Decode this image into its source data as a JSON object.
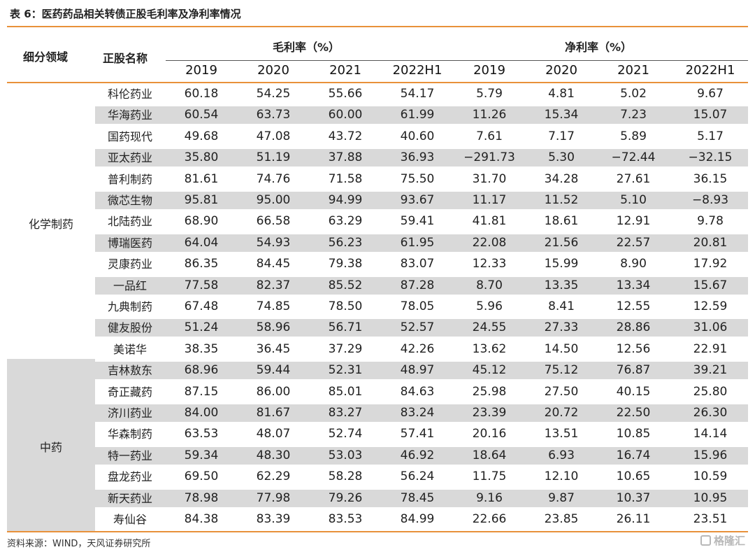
{
  "title": "表 6：医药药品相关转债正股毛利率及净利率情况",
  "headers": {
    "segment": "细分领域",
    "stock": "正股名称",
    "gross": "毛利率（%）",
    "net": "净利率（%）",
    "years": [
      "2019",
      "2020",
      "2021",
      "2022H1",
      "2019",
      "2020",
      "2021",
      "2022H1"
    ]
  },
  "groups": [
    {
      "label": "化学制药",
      "rows": [
        {
          "name": "科伦药业",
          "values": [
            "60.18",
            "54.25",
            "55.66",
            "54.17",
            "5.79",
            "4.81",
            "5.02",
            "9.67"
          ]
        },
        {
          "name": "华海药业",
          "values": [
            "60.54",
            "63.73",
            "60.00",
            "61.99",
            "11.26",
            "15.34",
            "7.23",
            "15.07"
          ]
        },
        {
          "name": "国药现代",
          "values": [
            "49.68",
            "47.08",
            "43.72",
            "40.60",
            "7.61",
            "7.17",
            "5.89",
            "5.17"
          ]
        },
        {
          "name": "亚太药业",
          "values": [
            "35.80",
            "51.19",
            "37.88",
            "36.93",
            "−291.73",
            "5.30",
            "−72.44",
            "−32.15"
          ]
        },
        {
          "name": "普利制药",
          "values": [
            "81.61",
            "74.76",
            "71.58",
            "75.50",
            "31.70",
            "34.28",
            "27.61",
            "36.15"
          ]
        },
        {
          "name": "微芯生物",
          "values": [
            "95.81",
            "95.00",
            "94.99",
            "93.67",
            "11.17",
            "11.52",
            "5.10",
            "−8.93"
          ]
        },
        {
          "name": "北陆药业",
          "values": [
            "68.90",
            "66.58",
            "63.29",
            "59.41",
            "41.81",
            "18.61",
            "12.91",
            "9.78"
          ]
        },
        {
          "name": "博瑞医药",
          "values": [
            "64.04",
            "54.93",
            "56.23",
            "61.95",
            "22.08",
            "21.56",
            "22.57",
            "20.81"
          ]
        },
        {
          "name": "灵康药业",
          "values": [
            "86.35",
            "84.45",
            "79.38",
            "83.07",
            "12.33",
            "15.99",
            "8.90",
            "17.92"
          ]
        },
        {
          "name": "一品红",
          "values": [
            "77.58",
            "82.37",
            "85.52",
            "87.28",
            "8.70",
            "13.35",
            "13.34",
            "15.67"
          ]
        },
        {
          "name": "九典制药",
          "values": [
            "67.48",
            "74.85",
            "78.50",
            "78.05",
            "5.96",
            "8.41",
            "12.55",
            "12.59"
          ]
        },
        {
          "name": "健友股份",
          "values": [
            "51.24",
            "58.96",
            "56.71",
            "52.57",
            "24.55",
            "27.33",
            "28.86",
            "31.06"
          ]
        },
        {
          "name": "美诺华",
          "values": [
            "38.35",
            "36.45",
            "37.29",
            "42.26",
            "13.62",
            "14.50",
            "12.56",
            "22.91"
          ]
        }
      ]
    },
    {
      "label": "中药",
      "rows": [
        {
          "name": "吉林敖东",
          "values": [
            "68.96",
            "59.44",
            "52.31",
            "48.97",
            "45.12",
            "75.12",
            "76.87",
            "39.21"
          ]
        },
        {
          "name": "奇正藏药",
          "values": [
            "87.15",
            "86.00",
            "85.01",
            "84.63",
            "25.98",
            "27.50",
            "40.15",
            "25.80"
          ]
        },
        {
          "name": "济川药业",
          "values": [
            "84.00",
            "81.67",
            "83.27",
            "83.24",
            "23.39",
            "20.72",
            "22.50",
            "26.30"
          ]
        },
        {
          "name": "华森制药",
          "values": [
            "63.53",
            "48.07",
            "52.74",
            "57.41",
            "20.16",
            "13.51",
            "10.85",
            "14.14"
          ]
        },
        {
          "name": "特一药业",
          "values": [
            "59.34",
            "48.30",
            "53.03",
            "46.92",
            "18.64",
            "6.93",
            "16.74",
            "15.96"
          ]
        },
        {
          "name": "盘龙药业",
          "values": [
            "69.50",
            "62.29",
            "58.28",
            "56.24",
            "11.75",
            "12.10",
            "10.65",
            "10.59"
          ]
        },
        {
          "name": "新天药业",
          "values": [
            "78.98",
            "77.98",
            "79.26",
            "78.45",
            "9.16",
            "9.87",
            "10.37",
            "10.95"
          ]
        },
        {
          "name": "寿仙谷",
          "values": [
            "84.38",
            "83.39",
            "83.53",
            "84.99",
            "22.66",
            "23.85",
            "26.11",
            "23.51"
          ]
        }
      ]
    }
  ],
  "source": "资料来源：WIND，天风证券研究所",
  "watermark": "格隆汇"
}
